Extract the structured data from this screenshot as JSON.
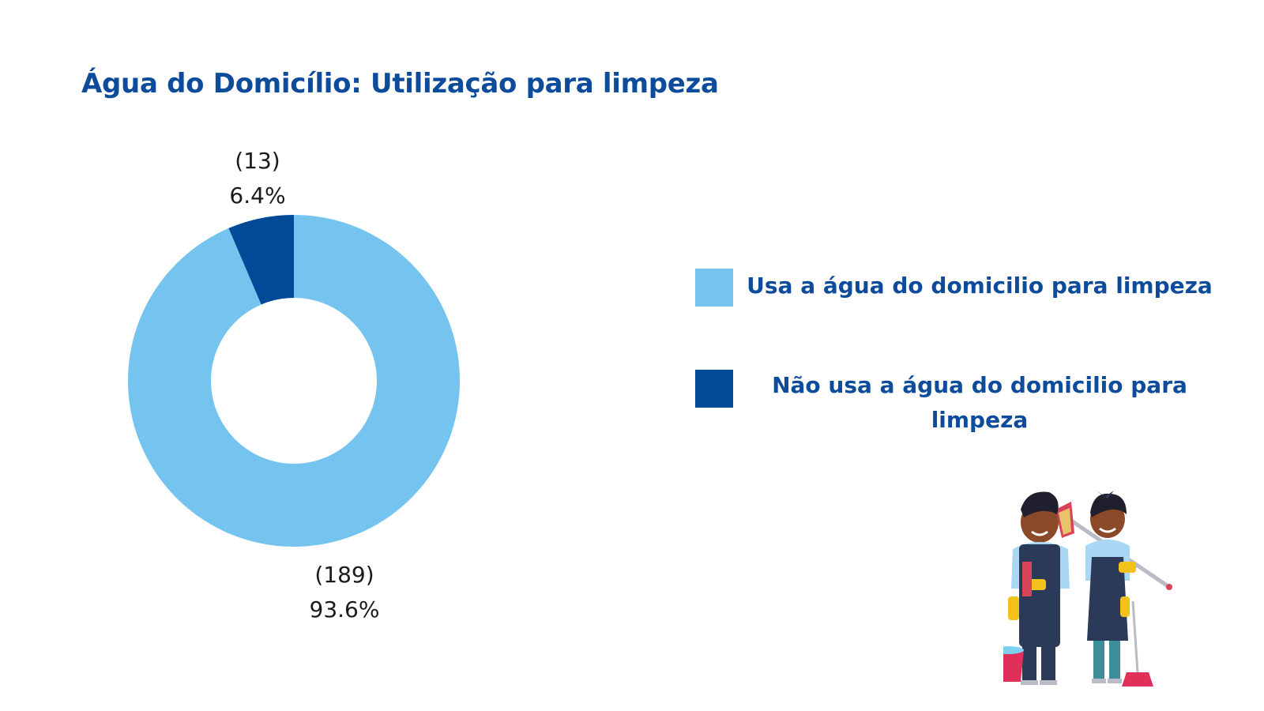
{
  "chart_data": {
    "type": "pie",
    "title": "Água do Domicílio: Utilização para limpeza",
    "slices": [
      {
        "label": "Usa a água do domicilio para limpeza",
        "value": 189,
        "percent": "93.6%",
        "count_label": "(189)",
        "color": "#75c4ef"
      },
      {
        "label": "Não usa a água do domicilio para limpeza",
        "value": 13,
        "percent": "6.4%",
        "count_label": "(13)",
        "color": "#004a98"
      }
    ],
    "legend_position": "right"
  },
  "colors": {
    "title": "#0d4c9b",
    "legend_text": "#0d4c9b",
    "label_text": "#1a1a1a"
  },
  "illustration": {
    "icon": "cleaning-workers-illustration"
  }
}
